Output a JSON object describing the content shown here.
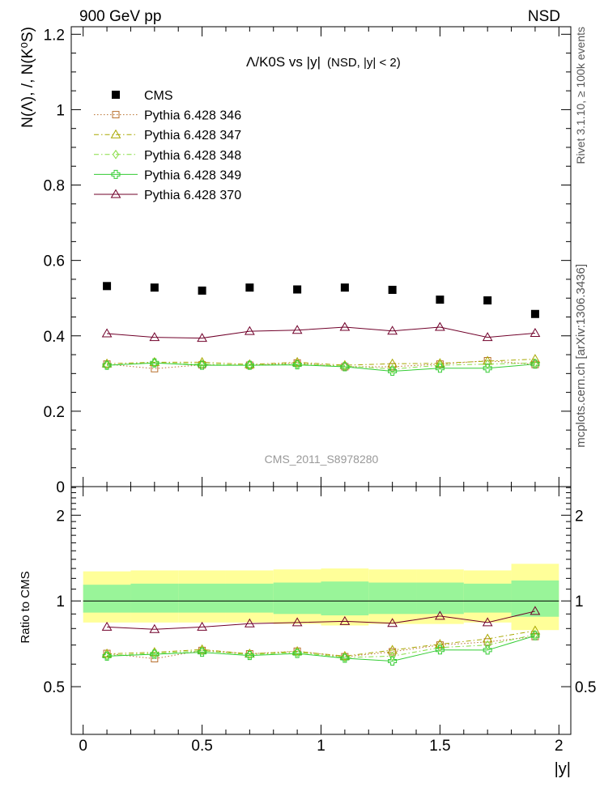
{
  "header": {
    "left": "900 GeV pp",
    "right": "NSD",
    "side_rivet": "Rivet 3.1.10, ≥ 100k events",
    "side_mcplots": "mcplots.cern.ch [arXiv:1306.3436]",
    "watermark": "CMS_2011_S8978280"
  },
  "chart_data": [
    {
      "type": "scatter",
      "title": "Λ/K0S vs |y|",
      "subtitle": "(NSD, |y| < 2)",
      "ylabel": "N(Λ), /, N(K⁰S)",
      "ylim": [
        0,
        1.22
      ],
      "yticks": [
        0,
        0.2,
        0.4,
        0.6,
        0.8,
        1,
        1.2
      ],
      "ytick_labels": [
        "0",
        "0.2",
        "0.4",
        "0.6",
        "0.8",
        "1",
        "1.2"
      ],
      "xlim": [
        -0.05,
        2.05
      ],
      "legend_placement": "top-left",
      "x": [
        0.1,
        0.3,
        0.5,
        0.7,
        0.9,
        1.1,
        1.3,
        1.5,
        1.7,
        1.9
      ],
      "series": [
        {
          "name": "CMS",
          "color": "#000000",
          "marker": "square",
          "line": "none",
          "values": [
            0.532,
            0.528,
            0.52,
            0.528,
            0.523,
            0.528,
            0.522,
            0.496,
            0.494,
            0.458
          ]
        },
        {
          "name": "Pythia 6.428 346",
          "color": "#b8702e",
          "marker": "open-square",
          "line": "dotted",
          "values": [
            0.325,
            0.313,
            0.323,
            0.322,
            0.328,
            0.318,
            0.318,
            0.325,
            0.334,
            0.324
          ]
        },
        {
          "name": "Pythia 6.428 347",
          "color": "#a8a800",
          "marker": "open-triangle",
          "line": "dashdot",
          "values": [
            0.326,
            0.33,
            0.33,
            0.324,
            0.33,
            0.322,
            0.326,
            0.327,
            0.333,
            0.338
          ]
        },
        {
          "name": "Pythia 6.428 348",
          "color": "#88dd44",
          "marker": "open-diamond",
          "line": "dashdot",
          "values": [
            0.322,
            0.328,
            0.325,
            0.322,
            0.325,
            0.32,
            0.312,
            0.322,
            0.325,
            0.328
          ]
        },
        {
          "name": "Pythia 6.428 349",
          "color": "#33cc33",
          "marker": "open-cross",
          "line": "solid",
          "values": [
            0.322,
            0.328,
            0.322,
            0.322,
            0.323,
            0.318,
            0.306,
            0.314,
            0.314,
            0.325
          ]
        },
        {
          "name": "Pythia 6.428 370",
          "color": "#70002a",
          "marker": "open-triangle",
          "line": "solid",
          "values": [
            0.406,
            0.396,
            0.394,
            0.412,
            0.415,
            0.423,
            0.413,
            0.423,
            0.396,
            0.407
          ]
        }
      ]
    },
    {
      "type": "line",
      "ylabel": "Ratio to CMS",
      "xlabel": "|y|",
      "ylim": [
        0.34,
        2.52
      ],
      "yticks": [
        0.5,
        1,
        2
      ],
      "ytick_labels": [
        "0.5",
        "1",
        "2"
      ],
      "xlim": [
        -0.05,
        2.05
      ],
      "xticks": [
        0,
        0.5,
        1,
        1.5,
        2
      ],
      "xtick_labels": [
        "0",
        "0.5",
        "1",
        "1.5",
        "2"
      ],
      "bands": {
        "x_edges": [
          0,
          0.2,
          0.4,
          0.6,
          0.8,
          1.0,
          1.2,
          1.4,
          1.6,
          1.8,
          2.0
        ],
        "yellow_color": "#ffff99",
        "green_color": "#99f599",
        "yellow_lo": [
          0.84,
          0.84,
          0.84,
          0.84,
          0.83,
          0.82,
          0.83,
          0.83,
          0.84,
          0.79
        ],
        "yellow_hi": [
          1.27,
          1.28,
          1.28,
          1.28,
          1.29,
          1.3,
          1.29,
          1.29,
          1.28,
          1.35
        ],
        "green_lo": [
          0.91,
          0.91,
          0.91,
          0.91,
          0.9,
          0.89,
          0.9,
          0.9,
          0.91,
          0.88
        ],
        "green_hi": [
          1.14,
          1.15,
          1.15,
          1.15,
          1.16,
          1.17,
          1.16,
          1.16,
          1.15,
          1.18
        ]
      },
      "x": [
        0.1,
        0.3,
        0.5,
        0.7,
        0.9,
        1.1,
        1.3,
        1.5,
        1.7,
        1.9
      ],
      "series": [
        {
          "name": "Pythia 6.428 346",
          "values": [
            0.654,
            0.627,
            0.67,
            0.652,
            0.666,
            0.637,
            0.663,
            0.7,
            0.718,
            0.75
          ]
        },
        {
          "name": "Pythia 6.428 347",
          "values": [
            0.652,
            0.66,
            0.675,
            0.652,
            0.665,
            0.64,
            0.672,
            0.705,
            0.736,
            0.786
          ]
        },
        {
          "name": "Pythia 6.428 348",
          "values": [
            0.643,
            0.655,
            0.668,
            0.648,
            0.66,
            0.633,
            0.64,
            0.686,
            0.7,
            0.762
          ]
        },
        {
          "name": "Pythia 6.428 349",
          "values": [
            0.64,
            0.65,
            0.66,
            0.643,
            0.654,
            0.629,
            0.615,
            0.673,
            0.672,
            0.755
          ]
        },
        {
          "name": "Pythia 6.428 370",
          "values": [
            0.81,
            0.795,
            0.81,
            0.832,
            0.84,
            0.848,
            0.835,
            0.885,
            0.84,
            0.92
          ]
        }
      ]
    }
  ]
}
